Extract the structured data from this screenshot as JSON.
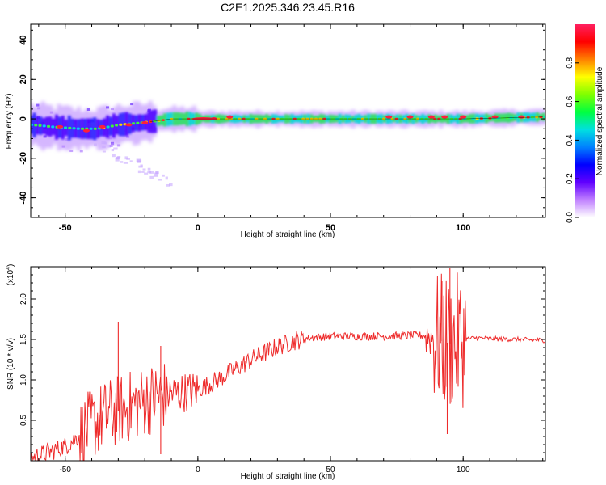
{
  "title": "C2E1.2025.346.23.45.R16",
  "chart_data": [
    {
      "type": "heatmap",
      "xlabel": "Height of straight line (km)",
      "ylabel": "Frequency (Hz)",
      "xlim": [
        -63,
        131
      ],
      "ylim": [
        -50,
        48
      ],
      "xticks": [
        -50,
        0,
        50,
        100
      ],
      "yticks": [
        -40,
        -20,
        0,
        20,
        40
      ],
      "colorbar": {
        "label": "Normalized spectral amplitude",
        "range": [
          0,
          1
        ],
        "ticks": [
          "0.0",
          "0.2",
          "0.4",
          "0.6",
          "0.8"
        ],
        "colors": [
          "#ffffff",
          "#c080ff",
          "#6000ff",
          "#0000ff",
          "#0080ff",
          "#00e0e0",
          "#00ff40",
          "#80ff00",
          "#ffff00",
          "#ff8000",
          "#ff0000",
          "#ff2060"
        ]
      },
      "ridge": [
        {
          "x": -63,
          "y": -3
        },
        {
          "x": -55,
          "y": -4
        },
        {
          "x": -45,
          "y": -5
        },
        {
          "x": -38,
          "y": -5
        },
        {
          "x": -30,
          "y": -3
        },
        {
          "x": -22,
          "y": -2
        },
        {
          "x": -15,
          "y": -1
        },
        {
          "x": -10,
          "y": 0
        },
        {
          "x": 0,
          "y": 0
        },
        {
          "x": 20,
          "y": 0
        },
        {
          "x": 50,
          "y": 0
        },
        {
          "x": 80,
          "y": 0
        },
        {
          "x": 100,
          "y": 0
        },
        {
          "x": 131,
          "y": 1
        }
      ]
    },
    {
      "type": "line",
      "xlabel": "Height of straight line (km)",
      "ylabel": "SNR (10 * v/v)",
      "yscale_label": "(x10",
      "yscale_exp": "4",
      "xlim": [
        -63,
        131
      ],
      "ylim": [
        0,
        2.4
      ],
      "xticks": [
        -50,
        0,
        50,
        100
      ],
      "yticks": [
        "0.5",
        "1.0",
        "1.5",
        "2.0"
      ],
      "color": "#ee2b2b",
      "series": [
        {
          "values": [
            {
              "x": -63,
              "y": 0.03
            },
            {
              "x": -55,
              "y": 0.12
            },
            {
              "x": -50,
              "y": 0.18
            },
            {
              "x": -45,
              "y": 0.3
            },
            {
              "x": -40,
              "y": 0.45
            },
            {
              "x": -35,
              "y": 0.55
            },
            {
              "x": -30,
              "y": 0.62
            },
            {
              "x": -25,
              "y": 0.68
            },
            {
              "x": -20,
              "y": 0.74
            },
            {
              "x": -15,
              "y": 0.8
            },
            {
              "x": -10,
              "y": 0.83
            },
            {
              "x": -5,
              "y": 0.85
            },
            {
              "x": 0,
              "y": 0.88
            },
            {
              "x": 5,
              "y": 0.96
            },
            {
              "x": 10,
              "y": 1.05
            },
            {
              "x": 15,
              "y": 1.15
            },
            {
              "x": 20,
              "y": 1.25
            },
            {
              "x": 25,
              "y": 1.33
            },
            {
              "x": 30,
              "y": 1.41
            },
            {
              "x": 35,
              "y": 1.47
            },
            {
              "x": 40,
              "y": 1.51
            },
            {
              "x": 45,
              "y": 1.53
            },
            {
              "x": 50,
              "y": 1.54
            },
            {
              "x": 60,
              "y": 1.54
            },
            {
              "x": 70,
              "y": 1.54
            },
            {
              "x": 80,
              "y": 1.55
            },
            {
              "x": 85,
              "y": 1.55
            },
            {
              "x": 90,
              "y": 1.5
            },
            {
              "x": 95,
              "y": 1.45
            },
            {
              "x": 100,
              "y": 1.5
            },
            {
              "x": 105,
              "y": 1.52
            },
            {
              "x": 110,
              "y": 1.51
            },
            {
              "x": 120,
              "y": 1.5
            },
            {
              "x": 131,
              "y": 1.49
            }
          ]
        }
      ],
      "annotated_peaks": [
        {
          "x": -30,
          "y": 1.72
        },
        {
          "x": -14,
          "y": 1.42
        },
        {
          "x": 92,
          "y": 2.22
        },
        {
          "x": 95,
          "y": 2.38
        },
        {
          "x": 94,
          "y": 0.33
        },
        {
          "x": -14,
          "y": 0.08
        }
      ]
    }
  ]
}
